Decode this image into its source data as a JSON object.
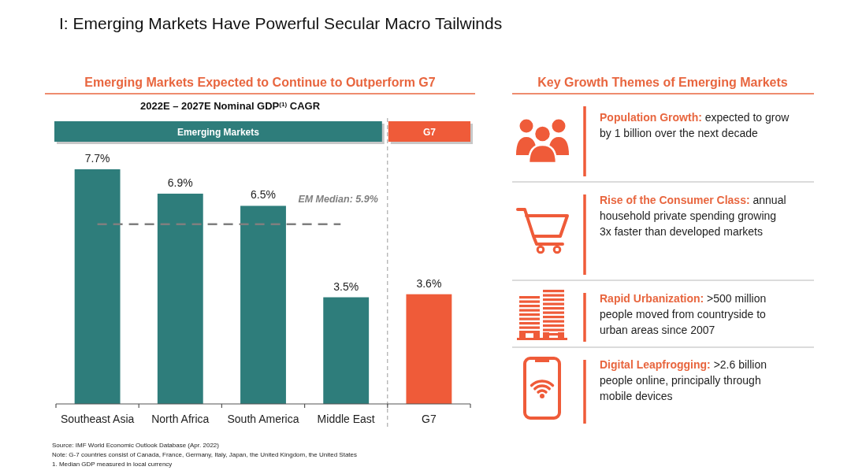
{
  "chart_data": [
    {
      "type": "bar",
      "title": "Emerging Markets Expected to Continue to Outperform G7",
      "subtitle": "2022E – 2027E Nominal GDP$^{(1)}$ CAGR",
      "categories": [
        "Southeast Asia",
        "North Africa",
        "South America",
        "Middle East",
        "G7"
      ],
      "values": [
        7.7,
        6.9,
        6.5,
        3.5,
        3.6
      ],
      "colors": [
        "#2e7d7b",
        "#2e7d7b",
        "#2e7d7b",
        "#2e7d7b",
        "#ef5b39"
      ],
      "value_labels": [
        "7.7%",
        "6.9%",
        "6.5%",
        "3.5%",
        "3.6%"
      ],
      "ref_lines": [
        {
          "axis": "y",
          "value": 5.9,
          "label": "EM Median: 5.9%",
          "color": "#7f7f7f",
          "line_style": "dashed"
        }
      ],
      "tick_labels": "x",
      "annotations": [
        "I: Emerging Markets Have Powerful Secular Macro Tailwinds",
        "Emerging Markets",
        "G7",
        "Source: IMF World Economic Outlook Database (Apr. 2022)",
        "Note: G-7 countries consist of Canada, France, Germany, Italy, Japan, the United Kingdom, the United States",
        "1. Median GDP measured in local currency"
      ]
    },
    {
      "type": "other",
      "title": "Key Growth Themes of Emerging Markets",
      "annotations": [
        "Population Growth: expected to grow by 1 billion over the next decade",
        "Rise of the Consumer Class: annual household private spending growing 3x faster than developed markets",
        "Rapid Urbanization: >500 million people moved from countryside to urban areas since 2007",
        "Digital Leapfrogging: >2.6 billion people online, principally through mobile devices"
      ]
    }
  ]
}
